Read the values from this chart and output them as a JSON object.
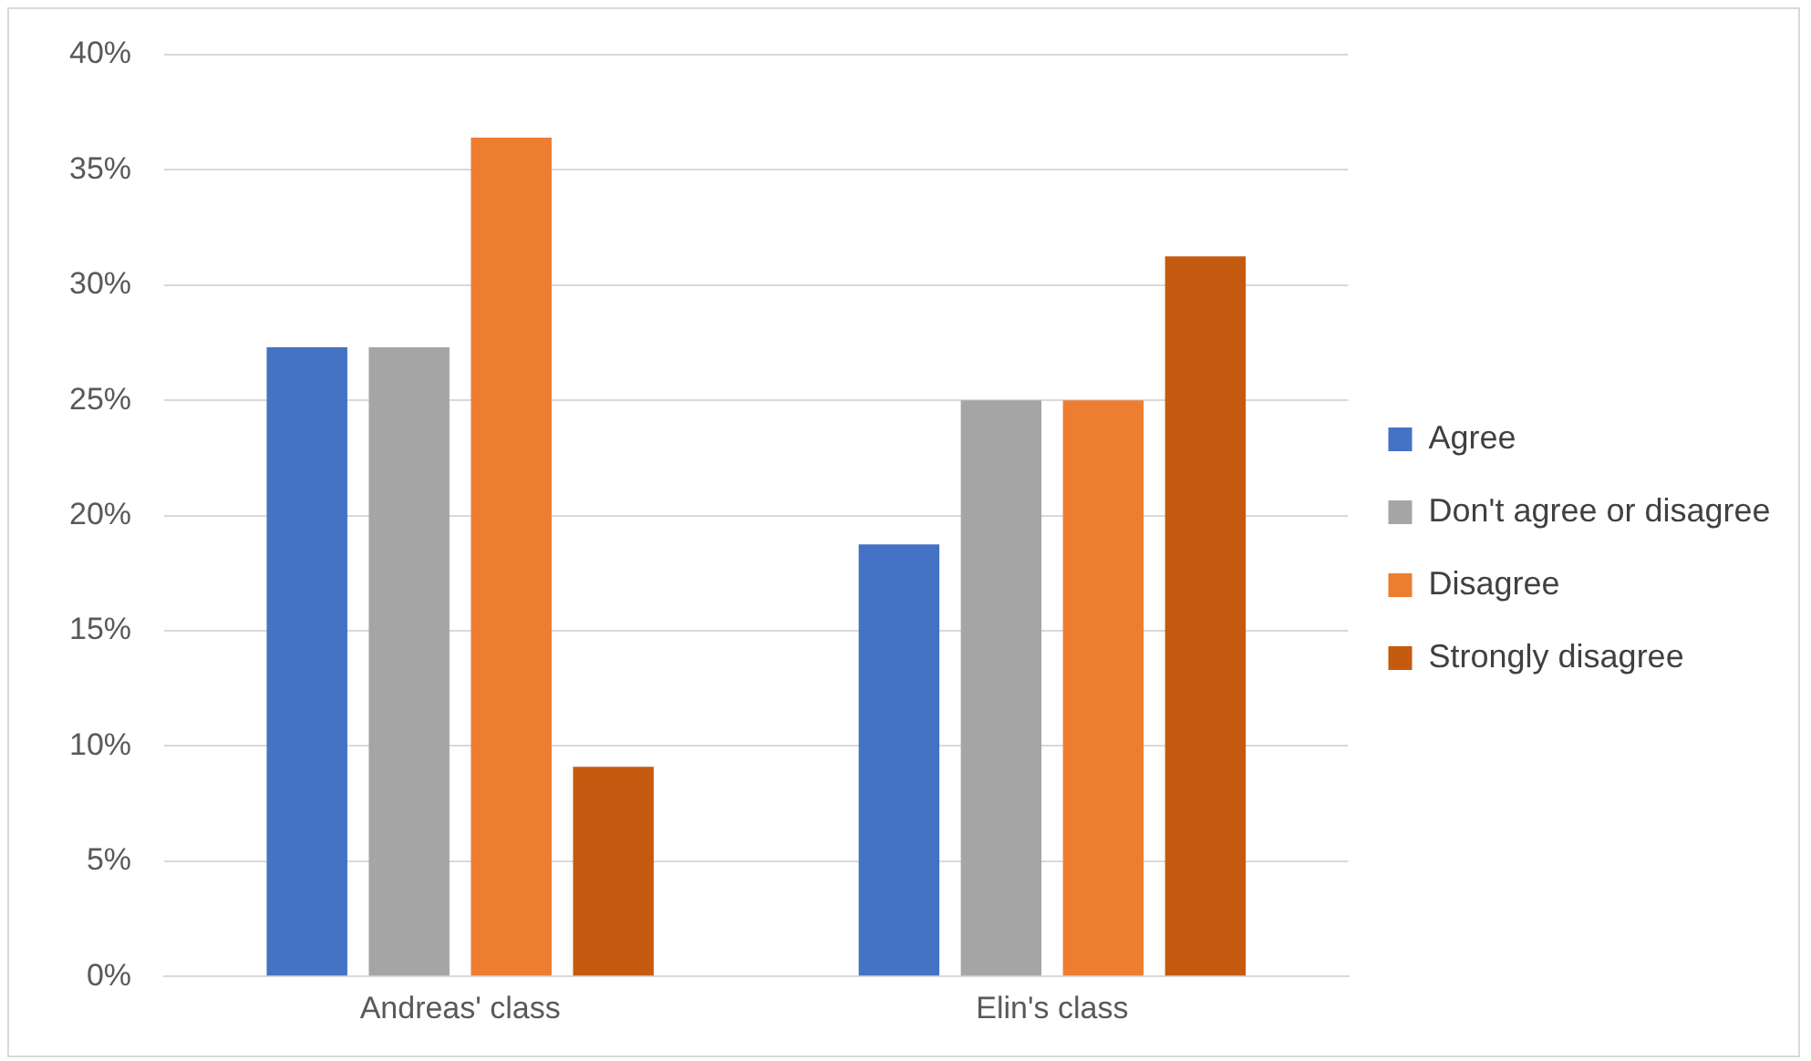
{
  "chart_data": {
    "type": "bar",
    "categories": [
      "Andreas' class",
      "Elin's class"
    ],
    "series": [
      {
        "name": "Agree",
        "color": "#4472c4",
        "values": [
          27.3,
          18.75
        ]
      },
      {
        "name": "Don't agree or disagree",
        "color": "#a5a5a5",
        "values": [
          27.3,
          25
        ]
      },
      {
        "name": "Disagree",
        "color": "#ed7d31",
        "values": [
          36.4,
          25
        ]
      },
      {
        "name": "Strongly disagree",
        "color": "#c55a11",
        "values": [
          9.1,
          31.25
        ]
      }
    ],
    "ylim": [
      0,
      40
    ],
    "yticks": [
      {
        "value": 0,
        "label": "0%"
      },
      {
        "value": 5,
        "label": "5%"
      },
      {
        "value": 10,
        "label": "10%"
      },
      {
        "value": 15,
        "label": "15%"
      },
      {
        "value": 20,
        "label": "20%"
      },
      {
        "value": 25,
        "label": "25%"
      },
      {
        "value": 30,
        "label": "30%"
      },
      {
        "value": 35,
        "label": "35%"
      },
      {
        "value": 40,
        "label": "40%"
      }
    ],
    "grid": "y",
    "legend": "right"
  }
}
